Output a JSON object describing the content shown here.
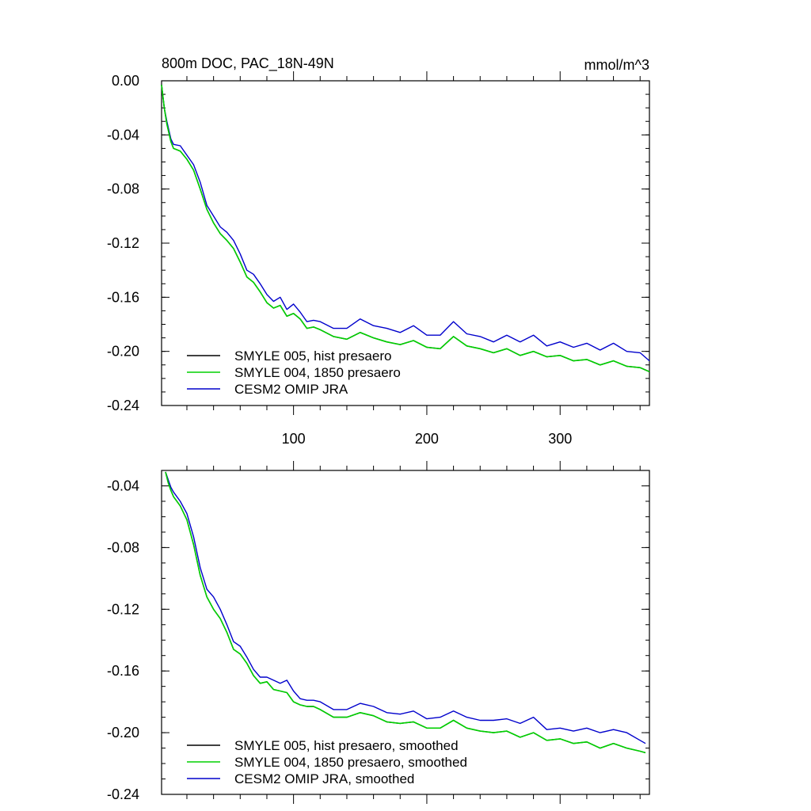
{
  "chart_data": [
    {
      "type": "line",
      "title": "800m DOC, PAC_18N-49N",
      "units": "mmol/m^3",
      "xlim": [
        1,
        367
      ],
      "ylim": [
        -0.24,
        0.0
      ],
      "y_ticks": [
        "0.00",
        "-0.04",
        "-0.08",
        "-0.12",
        "-0.16",
        "-0.20",
        "-0.24"
      ],
      "y_tick_values": [
        0.0,
        -0.04,
        -0.08,
        -0.12,
        -0.16,
        -0.2,
        -0.24
      ],
      "x_ticks": [
        "100",
        "200",
        "300"
      ],
      "x_tick_values": [
        100,
        200,
        300
      ],
      "legend": "bottom-left",
      "series": [
        {
          "name": "SMYLE 005, hist presaero",
          "color": "#000000",
          "x": [
            1,
            3,
            5,
            8,
            10,
            15,
            20,
            25,
            30,
            35,
            40,
            45,
            50,
            55,
            60,
            65,
            70,
            75,
            80,
            85,
            90,
            95,
            100,
            105,
            110,
            115,
            120,
            130,
            140,
            150,
            160,
            170,
            180,
            190,
            200,
            210,
            220,
            230,
            240,
            250,
            260,
            270,
            280,
            290,
            300,
            310,
            320,
            330,
            340,
            350,
            360,
            367
          ],
          "y": [
            -0.003,
            -0.02,
            -0.032,
            -0.045,
            -0.05,
            -0.052,
            -0.058,
            -0.066,
            -0.08,
            -0.095,
            -0.105,
            -0.113,
            -0.118,
            -0.124,
            -0.134,
            -0.145,
            -0.149,
            -0.156,
            -0.164,
            -0.168,
            -0.166,
            -0.174,
            -0.172,
            -0.176,
            -0.183,
            -0.182,
            -0.184,
            -0.189,
            -0.191,
            -0.186,
            -0.19,
            -0.193,
            -0.195,
            -0.192,
            -0.197,
            -0.198,
            -0.189,
            -0.196,
            -0.198,
            -0.201,
            -0.198,
            -0.203,
            -0.2,
            -0.204,
            -0.203,
            -0.207,
            -0.206,
            -0.21,
            -0.207,
            -0.211,
            -0.212,
            -0.215
          ]
        },
        {
          "name": "SMYLE 004, 1850 presaero",
          "color": "#00d000",
          "x": [
            1,
            3,
            5,
            8,
            10,
            15,
            20,
            25,
            30,
            35,
            40,
            45,
            50,
            55,
            60,
            65,
            70,
            75,
            80,
            85,
            90,
            95,
            100,
            105,
            110,
            115,
            120,
            130,
            140,
            150,
            160,
            170,
            180,
            190,
            200,
            210,
            220,
            230,
            240,
            250,
            260,
            270,
            280,
            290,
            300,
            310,
            320,
            330,
            340,
            350,
            360,
            367
          ],
          "y": [
            -0.003,
            -0.02,
            -0.032,
            -0.045,
            -0.05,
            -0.052,
            -0.058,
            -0.066,
            -0.08,
            -0.095,
            -0.105,
            -0.113,
            -0.118,
            -0.124,
            -0.134,
            -0.145,
            -0.149,
            -0.156,
            -0.164,
            -0.168,
            -0.166,
            -0.174,
            -0.172,
            -0.176,
            -0.183,
            -0.182,
            -0.184,
            -0.189,
            -0.191,
            -0.186,
            -0.19,
            -0.193,
            -0.195,
            -0.192,
            -0.197,
            -0.198,
            -0.189,
            -0.196,
            -0.198,
            -0.201,
            -0.198,
            -0.203,
            -0.2,
            -0.204,
            -0.203,
            -0.207,
            -0.206,
            -0.21,
            -0.207,
            -0.211,
            -0.212,
            -0.215
          ]
        },
        {
          "name": "CESM2 OMIP JRA",
          "color": "#0000cc",
          "x": [
            1,
            3,
            5,
            8,
            10,
            15,
            20,
            25,
            30,
            35,
            40,
            45,
            50,
            55,
            60,
            65,
            70,
            75,
            80,
            85,
            90,
            95,
            100,
            105,
            110,
            115,
            120,
            130,
            140,
            150,
            160,
            170,
            180,
            190,
            200,
            210,
            220,
            230,
            240,
            250,
            260,
            270,
            280,
            290,
            300,
            310,
            320,
            330,
            340,
            350,
            360,
            367
          ],
          "y": [
            -0.003,
            -0.02,
            -0.03,
            -0.043,
            -0.047,
            -0.048,
            -0.055,
            -0.062,
            -0.075,
            -0.092,
            -0.1,
            -0.108,
            -0.112,
            -0.118,
            -0.128,
            -0.14,
            -0.143,
            -0.15,
            -0.158,
            -0.163,
            -0.16,
            -0.169,
            -0.165,
            -0.171,
            -0.178,
            -0.177,
            -0.178,
            -0.183,
            -0.183,
            -0.176,
            -0.181,
            -0.183,
            -0.186,
            -0.181,
            -0.188,
            -0.188,
            -0.178,
            -0.187,
            -0.189,
            -0.193,
            -0.188,
            -0.193,
            -0.188,
            -0.196,
            -0.193,
            -0.197,
            -0.194,
            -0.199,
            -0.194,
            -0.2,
            -0.201,
            -0.207
          ]
        }
      ]
    },
    {
      "type": "line",
      "title": "",
      "xlim": [
        1,
        367
      ],
      "ylim": [
        -0.24,
        -0.03
      ],
      "y_ticks": [
        "-0.04",
        "-0.08",
        "-0.12",
        "-0.16",
        "-0.20",
        "-0.24"
      ],
      "y_tick_values": [
        -0.04,
        -0.08,
        -0.12,
        -0.16,
        -0.2,
        -0.24
      ],
      "legend": "bottom-left",
      "series": [
        {
          "name": "SMYLE 005, hist presaero, smoothed",
          "color": "#000000",
          "x": [
            4,
            6,
            8,
            10,
            15,
            20,
            25,
            30,
            35,
            40,
            45,
            50,
            55,
            60,
            65,
            70,
            75,
            80,
            85,
            90,
            95,
            100,
            105,
            110,
            115,
            120,
            130,
            140,
            150,
            160,
            170,
            180,
            190,
            200,
            210,
            220,
            230,
            240,
            250,
            260,
            270,
            280,
            290,
            300,
            310,
            320,
            330,
            340,
            350,
            360,
            364
          ],
          "y": [
            -0.031,
            -0.038,
            -0.043,
            -0.047,
            -0.053,
            -0.062,
            -0.078,
            -0.098,
            -0.112,
            -0.12,
            -0.126,
            -0.135,
            -0.146,
            -0.149,
            -0.155,
            -0.163,
            -0.168,
            -0.167,
            -0.172,
            -0.173,
            -0.174,
            -0.18,
            -0.182,
            -0.183,
            -0.183,
            -0.185,
            -0.19,
            -0.19,
            -0.187,
            -0.189,
            -0.193,
            -0.194,
            -0.193,
            -0.197,
            -0.197,
            -0.192,
            -0.197,
            -0.199,
            -0.2,
            -0.199,
            -0.203,
            -0.2,
            -0.205,
            -0.204,
            -0.207,
            -0.206,
            -0.21,
            -0.207,
            -0.21,
            -0.212,
            -0.213
          ]
        },
        {
          "name": "SMYLE 004, 1850 presaero, smoothed",
          "color": "#00d000",
          "x": [
            4,
            6,
            8,
            10,
            15,
            20,
            25,
            30,
            35,
            40,
            45,
            50,
            55,
            60,
            65,
            70,
            75,
            80,
            85,
            90,
            95,
            100,
            105,
            110,
            115,
            120,
            130,
            140,
            150,
            160,
            170,
            180,
            190,
            200,
            210,
            220,
            230,
            240,
            250,
            260,
            270,
            280,
            290,
            300,
            310,
            320,
            330,
            340,
            350,
            360,
            364
          ],
          "y": [
            -0.031,
            -0.038,
            -0.043,
            -0.047,
            -0.053,
            -0.062,
            -0.078,
            -0.098,
            -0.112,
            -0.12,
            -0.126,
            -0.135,
            -0.146,
            -0.149,
            -0.155,
            -0.163,
            -0.168,
            -0.167,
            -0.172,
            -0.173,
            -0.174,
            -0.18,
            -0.182,
            -0.183,
            -0.183,
            -0.185,
            -0.19,
            -0.19,
            -0.187,
            -0.189,
            -0.193,
            -0.194,
            -0.193,
            -0.197,
            -0.197,
            -0.192,
            -0.197,
            -0.199,
            -0.2,
            -0.199,
            -0.203,
            -0.2,
            -0.205,
            -0.204,
            -0.207,
            -0.206,
            -0.21,
            -0.207,
            -0.21,
            -0.212,
            -0.213
          ]
        },
        {
          "name": "CESM2 OMIP JRA, smoothed",
          "color": "#0000cc",
          "x": [
            4,
            6,
            8,
            10,
            15,
            20,
            25,
            30,
            35,
            40,
            45,
            50,
            55,
            60,
            65,
            70,
            75,
            80,
            85,
            90,
            95,
            100,
            105,
            110,
            115,
            120,
            130,
            140,
            150,
            160,
            170,
            180,
            190,
            200,
            210,
            220,
            230,
            240,
            250,
            260,
            270,
            280,
            290,
            300,
            310,
            320,
            330,
            340,
            350,
            360,
            364
          ],
          "y": [
            -0.031,
            -0.036,
            -0.041,
            -0.044,
            -0.05,
            -0.058,
            -0.073,
            -0.093,
            -0.107,
            -0.112,
            -0.12,
            -0.13,
            -0.141,
            -0.144,
            -0.151,
            -0.159,
            -0.164,
            -0.164,
            -0.166,
            -0.168,
            -0.166,
            -0.173,
            -0.178,
            -0.179,
            -0.179,
            -0.18,
            -0.185,
            -0.185,
            -0.181,
            -0.183,
            -0.187,
            -0.188,
            -0.186,
            -0.191,
            -0.19,
            -0.186,
            -0.19,
            -0.192,
            -0.192,
            -0.191,
            -0.194,
            -0.19,
            -0.198,
            -0.197,
            -0.199,
            -0.197,
            -0.2,
            -0.198,
            -0.2,
            -0.205,
            -0.207
          ]
        }
      ]
    }
  ]
}
